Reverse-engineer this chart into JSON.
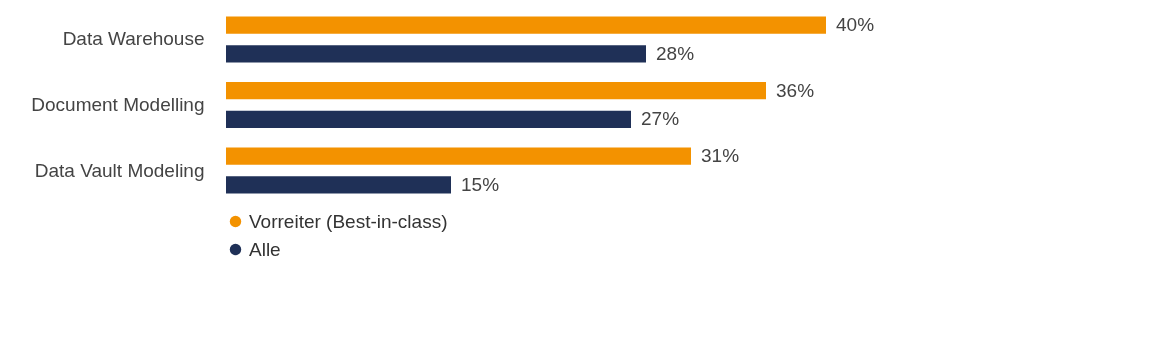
{
  "chart_data": {
    "type": "bar",
    "orientation": "horizontal",
    "categories": [
      "Data Warehouse",
      "Document Modelling",
      "Data Vault Modeling"
    ],
    "series": [
      {
        "name": "Vorreiter (Best-in-class)",
        "color": "#f39200",
        "values": [
          40,
          36,
          31
        ],
        "value_labels": [
          "40%",
          "36%",
          "31%"
        ]
      },
      {
        "name": "Alle",
        "color": "#1f3057",
        "values": [
          28,
          27,
          15
        ],
        "value_labels": [
          "28%",
          "27%",
          "15%"
        ]
      }
    ],
    "legend": "bottom left",
    "grid": false
  }
}
